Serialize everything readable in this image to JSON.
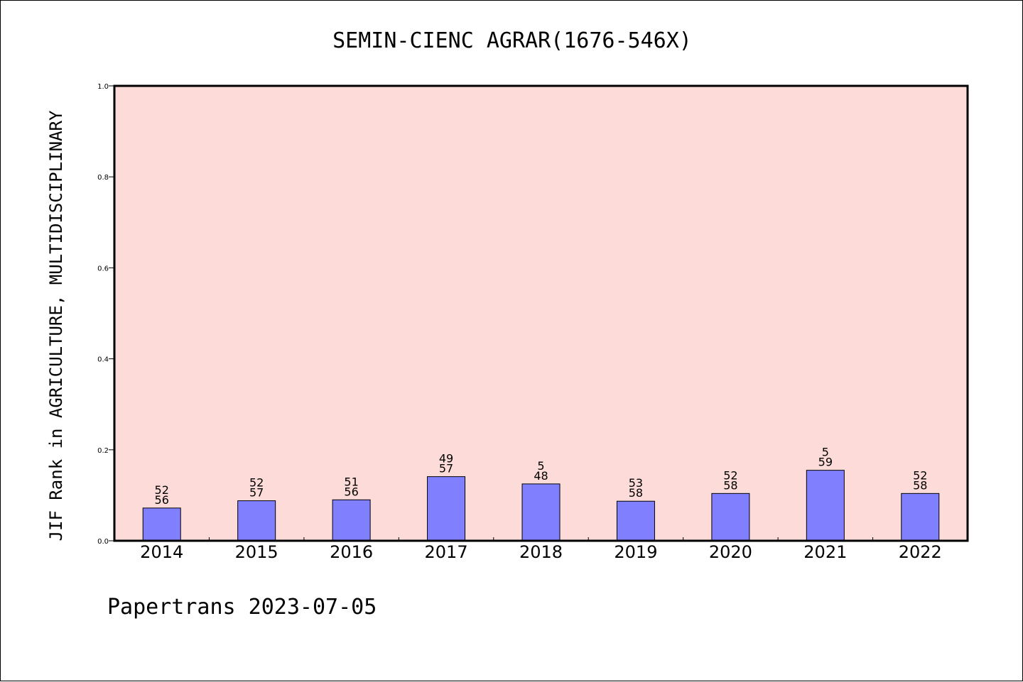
{
  "chart_data": {
    "type": "bar",
    "title": "SEMIN-CIENC AGRAR(1676-546X)",
    "ylabel": "JIF Rank in AGRICULTURE, MULTIDISCIPLINARY",
    "xlabel": "",
    "ylim": [
      0,
      1.0
    ],
    "yticks": [
      "0.0",
      "0.2",
      "0.4",
      "0.6",
      "0.8",
      "1.0"
    ],
    "categories": [
      "2014",
      "2015",
      "2016",
      "2017",
      "2018",
      "2019",
      "2020",
      "2021",
      "2022"
    ],
    "values": [
      0.072,
      0.088,
      0.09,
      0.141,
      0.125,
      0.087,
      0.104,
      0.155,
      0.104
    ],
    "rank_top": [
      "52",
      "52",
      "51",
      "49",
      "5",
      "53",
      "52",
      "5",
      "52"
    ],
    "rank_bottom": [
      "56",
      "57",
      "56",
      "57",
      "48",
      "58",
      "58",
      "59",
      "58"
    ],
    "grid": false,
    "plot_background": "#fddbd8",
    "bar_color": "#8080ff"
  },
  "footer": "Papertrans 2023-07-05"
}
